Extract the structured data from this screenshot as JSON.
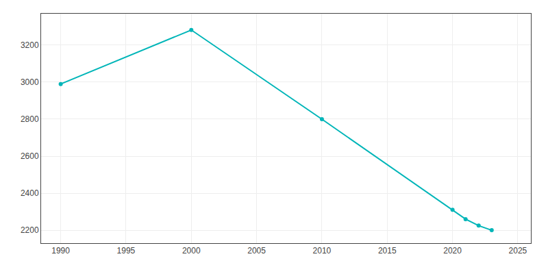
{
  "chart_data": {
    "type": "line",
    "x": [
      1990,
      2000,
      2010,
      2020,
      2021,
      2022,
      2023
    ],
    "values": [
      2990,
      3282,
      2800,
      2310,
      2260,
      2225,
      2200
    ],
    "color": "#00b5b8",
    "marker": "circle",
    "xlim": [
      1988.5,
      2026
    ],
    "ylim": [
      2130,
      3370
    ],
    "xticks": [
      1990,
      1995,
      2000,
      2005,
      2010,
      2015,
      2020,
      2025
    ],
    "yticks": [
      2200,
      2400,
      2600,
      2800,
      3000,
      3200
    ],
    "grid": true
  }
}
